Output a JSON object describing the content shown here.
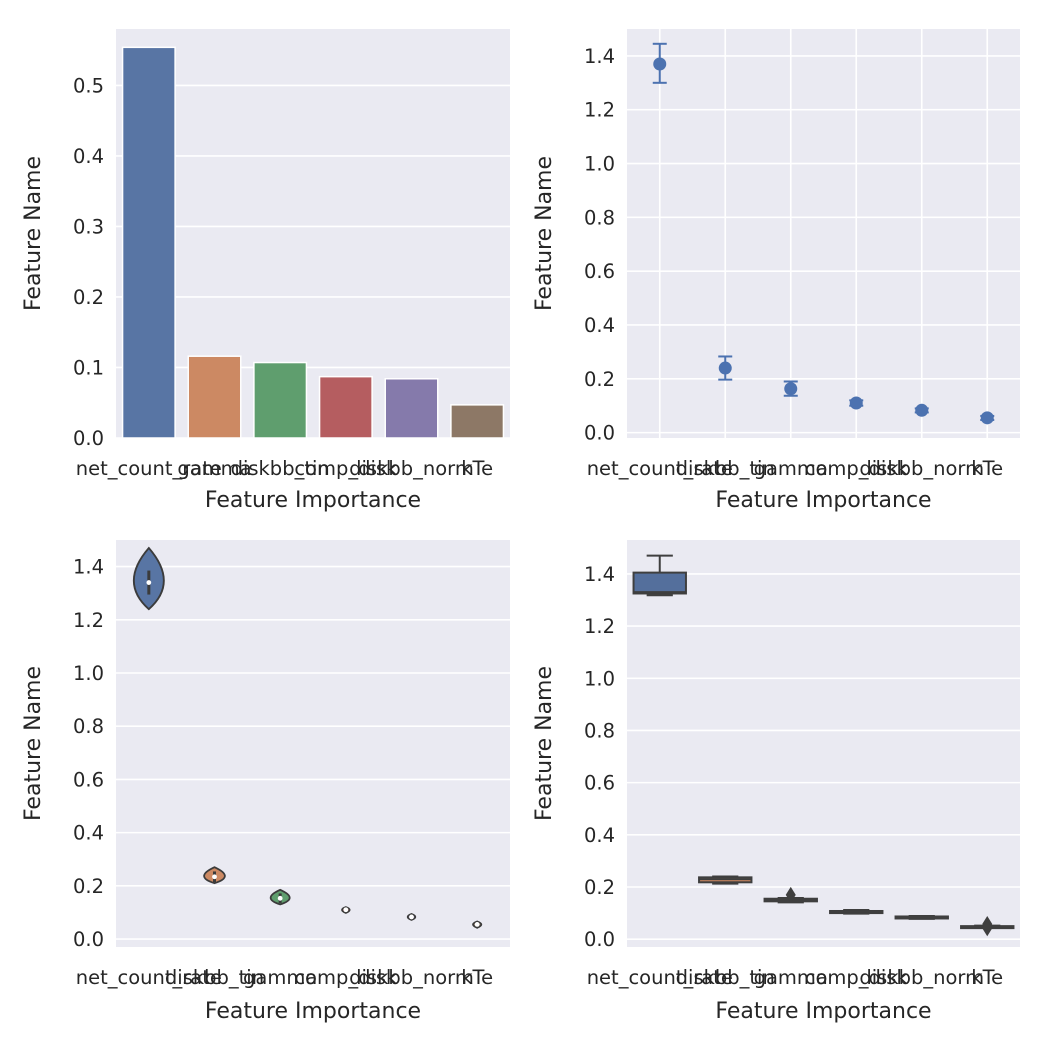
{
  "chart_data": [
    {
      "type": "bar",
      "xlabel": "Feature Importance",
      "ylabel": "Feature Name",
      "ylim": [
        0,
        0.58
      ],
      "yticks": [
        "0.0",
        "0.1",
        "0.2",
        "0.3",
        "0.4",
        "0.5"
      ],
      "categories": [
        "net_count_rate",
        "gamma",
        "diskbb_tin",
        "comp_disk",
        "diskbb_norm",
        "kTe"
      ],
      "values": [
        0.554,
        0.116,
        0.107,
        0.087,
        0.084,
        0.047
      ],
      "colors": [
        "#5875a4",
        "#cc8963",
        "#5f9e6e",
        "#b55d60",
        "#857aab",
        "#8d7866"
      ],
      "grid": true
    },
    {
      "type": "scatter",
      "xlabel": "Feature Importance",
      "ylabel": "Feature Name",
      "ylim": [
        -0.02,
        1.5
      ],
      "yticks": [
        "0.0",
        "0.2",
        "0.4",
        "0.6",
        "0.8",
        "1.0",
        "1.2",
        "1.4"
      ],
      "categories": [
        "net_count_rate",
        "diskbb_tin",
        "gamma",
        "comp_disk",
        "diskbb_norm",
        "kTe"
      ],
      "values": [
        1.37,
        0.24,
        0.163,
        0.11,
        0.083,
        0.055
      ],
      "err_low": [
        1.3,
        0.197,
        0.137,
        0.1,
        0.075,
        0.047
      ],
      "err_high": [
        1.445,
        0.283,
        0.19,
        0.12,
        0.09,
        0.062
      ],
      "color": "#4c72b0",
      "grid": true
    },
    {
      "type": "violin",
      "xlabel": "Feature Importance",
      "ylabel": "Feature Name",
      "ylim": [
        -0.03,
        1.5
      ],
      "yticks": [
        "0.0",
        "0.2",
        "0.4",
        "0.6",
        "0.8",
        "1.0",
        "1.2",
        "1.4"
      ],
      "categories": [
        "net_count_rate",
        "diskbb_tin",
        "gamma",
        "comp_disk",
        "diskbb_norm",
        "kTe"
      ],
      "medians": [
        1.34,
        0.234,
        0.153,
        0.11,
        0.083,
        0.055
      ],
      "min": [
        1.24,
        0.21,
        0.13,
        0.098,
        0.072,
        0.042
      ],
      "max": [
        1.47,
        0.27,
        0.185,
        0.12,
        0.094,
        0.066
      ],
      "colors": [
        "#5875a4",
        "#cc8963",
        "#5f9e6e",
        "#b55d60",
        "#857aab",
        "#8d7866"
      ],
      "grid": true
    },
    {
      "type": "box",
      "xlabel": "Feature Importance",
      "ylabel": "Feature Name",
      "ylim": [
        -0.03,
        1.53
      ],
      "yticks": [
        "0.0",
        "0.2",
        "0.4",
        "0.6",
        "0.8",
        "1.0",
        "1.2",
        "1.4"
      ],
      "categories": [
        "net_count_rate",
        "diskbb_tin",
        "gamma",
        "comp_disk",
        "diskbb_norm",
        "kTe"
      ],
      "q1": [
        1.325,
        0.218,
        0.145,
        0.1,
        0.08,
        0.045
      ],
      "median": [
        1.33,
        0.23,
        0.15,
        0.105,
        0.083,
        0.048
      ],
      "q3": [
        1.405,
        0.237,
        0.155,
        0.108,
        0.087,
        0.05
      ],
      "whisker_low": [
        1.318,
        0.213,
        0.141,
        0.098,
        0.078,
        0.043
      ],
      "whisker_high": [
        1.47,
        0.24,
        0.158,
        0.112,
        0.089,
        0.052
      ],
      "outliers": [
        [],
        [],
        [
          0.17
        ],
        [],
        [],
        [
          0.058,
          0.042
        ]
      ],
      "colors": [
        "#5875a4",
        "#cc8963",
        "#5f9e6e",
        "#b55d60",
        "#857aab",
        "#8d7866"
      ],
      "grid": true
    }
  ]
}
